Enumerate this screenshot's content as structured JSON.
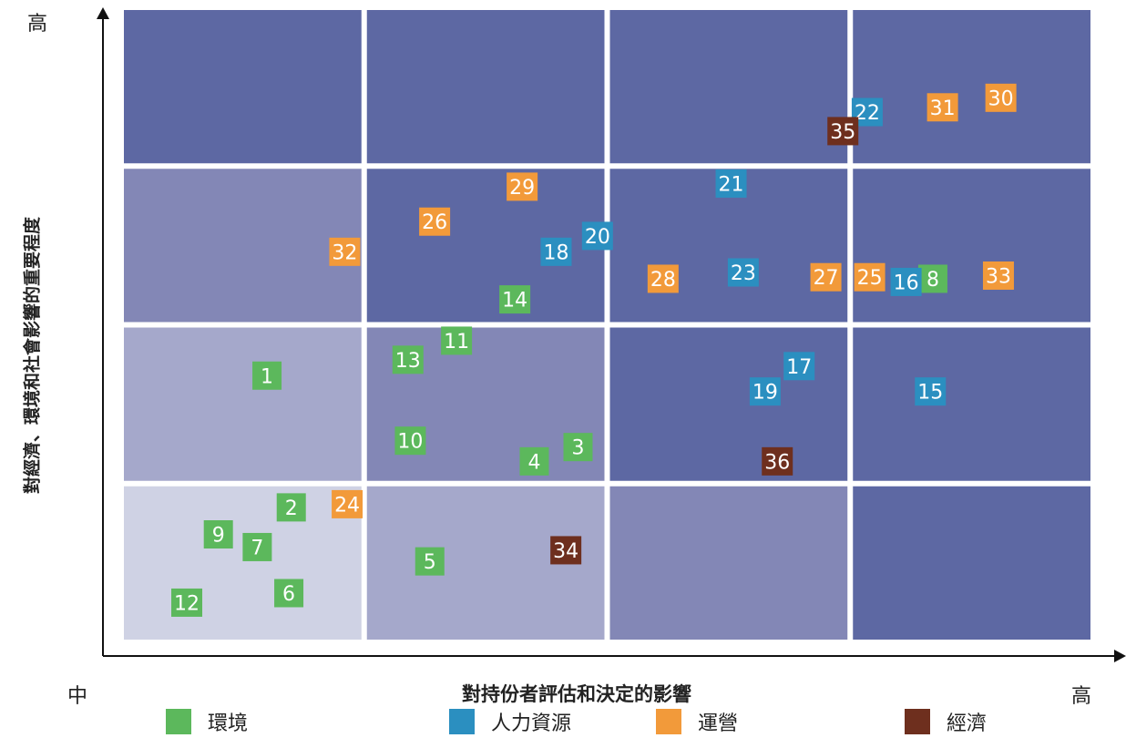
{
  "y_axis": {
    "title": "對經濟、環境和社會影響的重要程度",
    "high_label": "高"
  },
  "x_axis": {
    "title": "對持份者評估和決定的影響",
    "low_label": "中",
    "high_label": "高"
  },
  "colors": {
    "環境": "#5cb85c",
    "人力資源": "#2b8fc0",
    "運營": "#f29a3a",
    "經濟": "#6e2f1e"
  },
  "legend": [
    {
      "label": "環境",
      "category": "環境"
    },
    {
      "label": "人力資源",
      "category": "人力資源"
    },
    {
      "label": "運營",
      "category": "運營"
    },
    {
      "label": "經濟",
      "category": "經濟"
    }
  ],
  "chart_data": {
    "type": "scatter",
    "x_axis_range": [
      0,
      4
    ],
    "y_axis_range": [
      0,
      4
    ],
    "grid": "4x4",
    "legend_position": "bottom",
    "points": [
      {
        "id": "1",
        "category": "環境",
        "x": 0.6,
        "y": 1.68
      },
      {
        "id": "2",
        "category": "環境",
        "x": 0.7,
        "y": 0.85
      },
      {
        "id": "3",
        "category": "環境",
        "x": 1.88,
        "y": 1.23
      },
      {
        "id": "4",
        "category": "環境",
        "x": 1.7,
        "y": 1.14
      },
      {
        "id": "5",
        "category": "環境",
        "x": 1.27,
        "y": 0.51
      },
      {
        "id": "6",
        "category": "環境",
        "x": 0.69,
        "y": 0.31
      },
      {
        "id": "7",
        "category": "環境",
        "x": 0.56,
        "y": 0.6
      },
      {
        "id": "8",
        "category": "環境",
        "x": 3.34,
        "y": 2.29
      },
      {
        "id": "9",
        "category": "環境",
        "x": 0.4,
        "y": 0.68
      },
      {
        "id": "10",
        "category": "環境",
        "x": 1.19,
        "y": 1.27
      },
      {
        "id": "11",
        "category": "環境",
        "x": 1.38,
        "y": 1.9
      },
      {
        "id": "12",
        "category": "環境",
        "x": 0.27,
        "y": 0.25
      },
      {
        "id": "13",
        "category": "環境",
        "x": 1.18,
        "y": 1.78
      },
      {
        "id": "14",
        "category": "環境",
        "x": 1.62,
        "y": 2.16
      },
      {
        "id": "15",
        "category": "人力資源",
        "x": 3.33,
        "y": 1.58
      },
      {
        "id": "16",
        "category": "人力資源",
        "x": 3.23,
        "y": 2.27
      },
      {
        "id": "17",
        "category": "人力資源",
        "x": 2.79,
        "y": 1.74
      },
      {
        "id": "18",
        "category": "人力資源",
        "x": 1.79,
        "y": 2.46
      },
      {
        "id": "19",
        "category": "人力資源",
        "x": 2.65,
        "y": 1.58
      },
      {
        "id": "20",
        "category": "人力資源",
        "x": 1.96,
        "y": 2.56
      },
      {
        "id": "21",
        "category": "人力資源",
        "x": 2.51,
        "y": 2.89
      },
      {
        "id": "22",
        "category": "人力資源",
        "x": 3.07,
        "y": 3.34
      },
      {
        "id": "23",
        "category": "人力資源",
        "x": 2.56,
        "y": 2.33
      },
      {
        "id": "24",
        "category": "運營",
        "x": 0.93,
        "y": 0.87
      },
      {
        "id": "25",
        "category": "運營",
        "x": 3.08,
        "y": 2.3
      },
      {
        "id": "26",
        "category": "運營",
        "x": 1.29,
        "y": 2.65
      },
      {
        "id": "27",
        "category": "運營",
        "x": 2.9,
        "y": 2.3
      },
      {
        "id": "28",
        "category": "運營",
        "x": 2.23,
        "y": 2.29
      },
      {
        "id": "29",
        "category": "運營",
        "x": 1.65,
        "y": 2.87
      },
      {
        "id": "30",
        "category": "運營",
        "x": 3.62,
        "y": 3.43
      },
      {
        "id": "31",
        "category": "運營",
        "x": 3.38,
        "y": 3.37
      },
      {
        "id": "32",
        "category": "運營",
        "x": 0.92,
        "y": 2.46
      },
      {
        "id": "33",
        "category": "運營",
        "x": 3.61,
        "y": 2.31
      },
      {
        "id": "34",
        "category": "經濟",
        "x": 1.83,
        "y": 0.58
      },
      {
        "id": "35",
        "category": "經濟",
        "x": 2.97,
        "y": 3.22
      },
      {
        "id": "36",
        "category": "經濟",
        "x": 2.7,
        "y": 1.14
      }
    ]
  }
}
